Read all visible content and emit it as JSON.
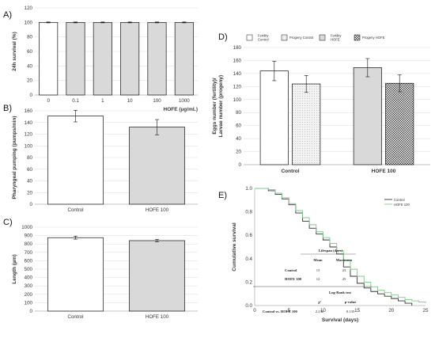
{
  "panels": {
    "A": "A)",
    "B": "B)",
    "C": "C)",
    "D": "D)",
    "E": "E)"
  },
  "chart_data": [
    {
      "id": "A",
      "type": "bar",
      "categories": [
        "0",
        "0.1",
        "1",
        "10",
        "100",
        "1000"
      ],
      "values": [
        100,
        100,
        100,
        100,
        100,
        100
      ],
      "errors": [
        0.6,
        0.6,
        0.6,
        0.6,
        0.6,
        0.6
      ],
      "fills": [
        "#ffffff",
        "#d9d9d9",
        "#d9d9d9",
        "#d9d9d9",
        "#d9d9d9",
        "#d9d9d9"
      ],
      "xlabel": "HOFE (µg/mL)",
      "ylabel": "24h survival (%)",
      "ylim": [
        0,
        120
      ],
      "yticks": [
        0,
        20,
        40,
        60,
        80,
        100,
        120
      ],
      "grid": true
    },
    {
      "id": "B",
      "type": "bar",
      "categories": [
        "Control",
        "HOFE 100"
      ],
      "values": [
        151,
        132
      ],
      "errors": [
        10,
        13
      ],
      "fills": [
        "#ffffff",
        "#d9d9d9"
      ],
      "xlabel": "",
      "ylabel": "Pharyngeal pumping (pumps/min)",
      "ylim": [
        0,
        160
      ],
      "yticks": [
        0,
        20,
        40,
        60,
        80,
        100,
        120,
        140,
        160
      ],
      "grid": true
    },
    {
      "id": "C",
      "type": "bar",
      "categories": [
        "Control",
        "HOFE 100"
      ],
      "values": [
        875,
        840
      ],
      "errors": [
        18,
        14
      ],
      "fills": [
        "#ffffff",
        "#d9d9d9"
      ],
      "xlabel": "",
      "ylabel": "Length (µm)",
      "ylim": [
        0,
        1000
      ],
      "yticks": [
        0,
        100,
        200,
        300,
        400,
        500,
        600,
        700,
        800,
        900,
        1000
      ],
      "grid": true
    },
    {
      "id": "D",
      "type": "bar",
      "groups": [
        "Control",
        "HOFE 100"
      ],
      "series": [
        {
          "name": "Fertility Control",
          "values": [
            144,
            null
          ],
          "errors": [
            15,
            null
          ],
          "pattern": "white"
        },
        {
          "name": "Progeny Control",
          "values": [
            124,
            null
          ],
          "errors": [
            13,
            null
          ],
          "pattern": "dots"
        },
        {
          "name": "Fertility HOFE",
          "values": [
            null,
            149
          ],
          "errors": [
            null,
            14
          ],
          "pattern": "gray"
        },
        {
          "name": "Progeny HOFE",
          "values": [
            null,
            125
          ],
          "errors": [
            null,
            13
          ],
          "pattern": "checker"
        }
      ],
      "ylabel": "Eggs number (fertility)/ Larvae number (progeny)",
      "ylim": [
        0,
        180
      ],
      "yticks": [
        0,
        20,
        40,
        60,
        80,
        100,
        120,
        140,
        160,
        180
      ],
      "grid": true,
      "legend": "top"
    },
    {
      "id": "E",
      "type": "line",
      "xlabel": "Survival (days)",
      "ylabel": "Cumulative survival",
      "xlim": [
        0,
        25
      ],
      "xticks": [
        0,
        5,
        10,
        15,
        20,
        25
      ],
      "ylim": [
        0,
        1.0
      ],
      "yticks": [
        0.0,
        0.2,
        0.4,
        0.6,
        0.8,
        1.0
      ],
      "legend": "top-right",
      "series": [
        {
          "name": "Control",
          "color": "#333333",
          "x": [
            0,
            1,
            2,
            3,
            4,
            5,
            6,
            7,
            8,
            9,
            10,
            11,
            12,
            13,
            14,
            15,
            16,
            17,
            18,
            19,
            20,
            21,
            22,
            23
          ],
          "y": [
            1.0,
            1.0,
            0.98,
            0.95,
            0.91,
            0.86,
            0.79,
            0.72,
            0.66,
            0.61,
            0.56,
            0.5,
            0.44,
            0.33,
            0.25,
            0.19,
            0.15,
            0.12,
            0.1,
            0.08,
            0.06,
            0.04,
            0.02,
            0.0
          ]
        },
        {
          "name": "HOFE 100",
          "color": "#7fc98a",
          "x": [
            0,
            1,
            2,
            3,
            4,
            5,
            6,
            7,
            8,
            9,
            10,
            11,
            12,
            13,
            14,
            15,
            16,
            17,
            18,
            19,
            20,
            21,
            22,
            23,
            24,
            25
          ],
          "y": [
            1.0,
            1.0,
            0.99,
            0.96,
            0.92,
            0.87,
            0.81,
            0.75,
            0.69,
            0.63,
            0.58,
            0.53,
            0.47,
            0.39,
            0.31,
            0.25,
            0.2,
            0.16,
            0.13,
            0.11,
            0.09,
            0.07,
            0.05,
            0.04,
            0.03,
            0.02
          ]
        }
      ],
      "table": {
        "title": "Lifespan (days)",
        "head": [
          "",
          "Mean",
          "Maximum"
        ],
        "rows": [
          [
            "Control",
            "13",
            "23"
          ],
          [
            "HOFE 100",
            "12",
            "25"
          ]
        ],
        "logrank_title": "Log-Rank test",
        "logrank_head": [
          "χ²",
          "p-value"
        ],
        "logrank_row": [
          "Control vs. HOFE 100",
          "2.232",
          "0.135"
        ]
      }
    }
  ]
}
